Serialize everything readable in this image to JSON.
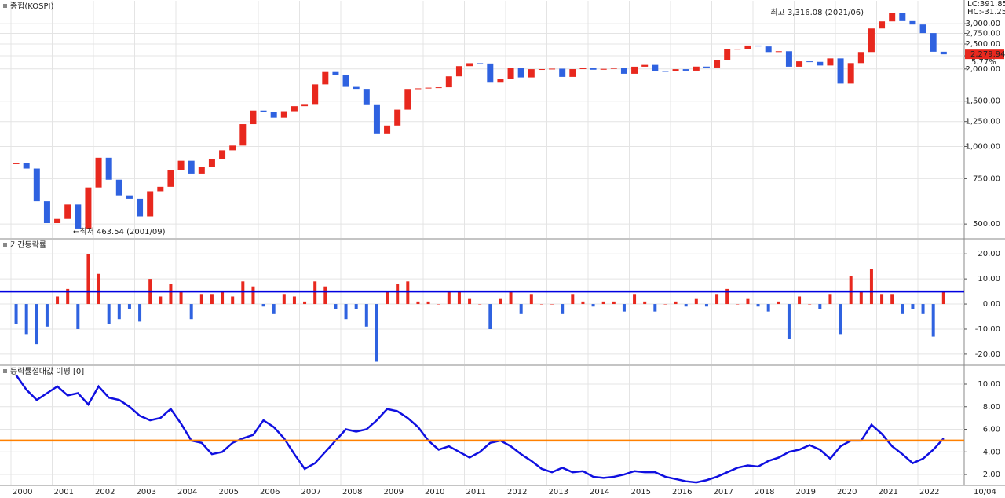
{
  "chart_data": [
    {
      "type": "candlestick",
      "title": "종합(KOSPI)",
      "values": [
        860,
        821,
        613,
        504,
        523,
        595,
        480,
        693,
        904,
        743,
        646,
        627,
        535,
        670,
        697,
        811,
        880,
        785,
        835,
        896,
        966,
        1008,
        1221,
        1379,
        1359,
        1295,
        1371,
        1434,
        1452,
        1743,
        1946,
        1897,
        1704,
        1674,
        1448,
        1124,
        1206,
        1390,
        1673,
        1682,
        1692,
        1698,
        1872,
        2051,
        2106,
        2100,
        1769,
        1826,
        2014,
        1854,
        1996,
        1997,
        2005,
        1863,
        1997,
        2011,
        1986,
        2002,
        2020,
        1916,
        2041,
        2074,
        1963,
        1961,
        1996,
        1970,
        2043,
        2026,
        2160,
        2392,
        2394,
        2467,
        2446,
        2326,
        2343,
        2041,
        2141,
        2131,
        2063,
        2198,
        1755,
        2108,
        2327,
        2873,
        3061,
        3297,
        3069,
        2977,
        2757,
        2333,
        2280
      ],
      "ylim": [
        441,
        3680
      ],
      "log_scale": true,
      "yticks": [
        {
          "value": 500,
          "label": "500.00"
        },
        {
          "value": 750,
          "label": "750.00"
        },
        {
          "value": 1000,
          "label": "1,000.00"
        },
        {
          "value": 1250,
          "label": "1,250.00"
        },
        {
          "value": 1500,
          "label": "1,500.00"
        },
        {
          "value": 2000,
          "label": "2,000.00"
        },
        {
          "value": 2250,
          "label": "2,250.00"
        },
        {
          "value": 2500,
          "label": "2,500.00"
        },
        {
          "value": 2750,
          "label": "2,750.00"
        },
        {
          "value": 3000,
          "label": "3,000.00"
        }
      ],
      "up_color": "#e8281e",
      "down_color": "#2f62e0",
      "annotations": {
        "high": "최고 3,316.08 (2021/06)",
        "low": "←최저 463.54 (2001/09)",
        "lc": "LC:391.85",
        "hc": "HC:-31.25",
        "last": "2,279.94",
        "change": "5.77%"
      }
    },
    {
      "type": "bar",
      "title": "기간등락률",
      "values": [
        -8,
        -12,
        -16,
        -9,
        3,
        6,
        -10,
        20,
        12,
        -8,
        -6,
        -2,
        -7,
        10,
        3,
        8,
        5,
        -6,
        4,
        4,
        5,
        3,
        9,
        7,
        -1,
        -4,
        4,
        3,
        1,
        9,
        7,
        -2,
        -6,
        -2,
        -9,
        -23,
        5,
        8,
        9,
        1,
        1,
        0,
        5,
        5,
        2,
        0,
        -10,
        2,
        5,
        -4,
        4,
        0,
        0,
        -4,
        4,
        1,
        -1,
        1,
        1,
        -3,
        4,
        1,
        -3,
        0,
        1,
        -1,
        2,
        -1,
        4,
        6,
        0,
        2,
        -1,
        -3,
        1,
        -14,
        3,
        0,
        -2,
        4,
        -12,
        11,
        5,
        14,
        4,
        4,
        -4,
        -2,
        -4,
        -13,
        5
      ],
      "ylim": [
        -24.1,
        25.7
      ],
      "yticks": [
        {
          "value": 20,
          "label": "20.00"
        },
        {
          "value": 10,
          "label": "10.00"
        },
        {
          "value": 0,
          "label": "0.00"
        },
        {
          "value": -10,
          "label": "-10.00"
        },
        {
          "value": -20,
          "label": "-20.00"
        }
      ],
      "up_color": "#e8281e",
      "down_color": "#2f62e0",
      "reference": 5,
      "reference_color": "#0000e0"
    },
    {
      "type": "line",
      "title": "등락률절대값 이평 [0]",
      "values": [
        10.8,
        9.5,
        8.6,
        9.2,
        9.8,
        9.0,
        9.2,
        8.2,
        9.8,
        8.8,
        8.6,
        8.0,
        7.2,
        6.8,
        7.0,
        7.8,
        6.5,
        5.0,
        4.8,
        3.8,
        4.0,
        4.8,
        5.2,
        5.5,
        6.8,
        6.2,
        5.2,
        3.8,
        2.5,
        3.0,
        4.0,
        5.0,
        6.0,
        5.8,
        6.0,
        6.8,
        7.8,
        7.6,
        7.0,
        6.2,
        5.0,
        4.2,
        4.5,
        4.0,
        3.5,
        4.0,
        4.8,
        5.0,
        4.5,
        3.8,
        3.2,
        2.5,
        2.2,
        2.6,
        2.2,
        2.3,
        1.8,
        1.7,
        1.8,
        2.0,
        2.3,
        2.2,
        2.2,
        1.8,
        1.6,
        1.4,
        1.3,
        1.5,
        1.8,
        2.2,
        2.6,
        2.8,
        2.7,
        3.2,
        3.5,
        4.0,
        4.2,
        4.6,
        4.2,
        3.4,
        4.5,
        5.0,
        5.0,
        6.4,
        5.6,
        4.5,
        3.8,
        3.0,
        3.4,
        4.2,
        5.2
      ],
      "ylim": [
        1.1,
        11.6
      ],
      "yticks": [
        {
          "value": 10,
          "label": "10.00"
        },
        {
          "value": 8,
          "label": "8.00"
        },
        {
          "value": 6,
          "label": "6.00"
        },
        {
          "value": 4,
          "label": "4.00"
        },
        {
          "value": 2,
          "label": "2.00"
        }
      ],
      "color": "#1010e0",
      "reference": 5,
      "reference_color": "#ff8000"
    }
  ],
  "x_axis": {
    "labels": [
      "2000",
      "2001",
      "2002",
      "2003",
      "2004",
      "2005",
      "2006",
      "2007",
      "2008",
      "2009",
      "2010",
      "2011",
      "2012",
      "2013",
      "2014",
      "2015",
      "2016",
      "2017",
      "2018",
      "2019",
      "2020",
      "2021",
      "2022"
    ],
    "corner": "10/04"
  }
}
